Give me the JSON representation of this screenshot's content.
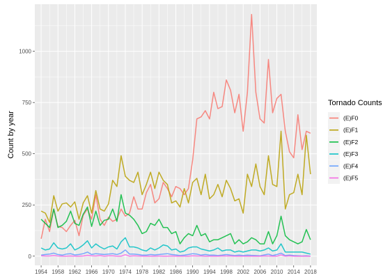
{
  "chart_data": {
    "type": "line",
    "title": "",
    "xlabel": "",
    "ylabel": "Count by year",
    "xlim": [
      1952.5,
      2019.5
    ],
    "ylim": [
      -45,
      1230
    ],
    "xticks": [
      1954,
      1958,
      1962,
      1966,
      1970,
      1974,
      1978,
      1982,
      1986,
      1990,
      1994,
      1998,
      2002,
      2006,
      2010,
      2014,
      2018
    ],
    "yticks": [
      0,
      250,
      500,
      750,
      1000
    ],
    "grid": true,
    "legend": {
      "title": "Tornado Counts",
      "position": "right"
    },
    "x": [
      1954,
      1955,
      1956,
      1957,
      1958,
      1959,
      1960,
      1961,
      1962,
      1963,
      1964,
      1965,
      1966,
      1967,
      1968,
      1969,
      1970,
      1971,
      1972,
      1973,
      1974,
      1975,
      1976,
      1977,
      1978,
      1979,
      1980,
      1981,
      1982,
      1983,
      1984,
      1985,
      1986,
      1987,
      1988,
      1989,
      1990,
      1991,
      1992,
      1993,
      1994,
      1995,
      1996,
      1997,
      1998,
      1999,
      2000,
      2001,
      2002,
      2003,
      2004,
      2005,
      2006,
      2007,
      2008,
      2009,
      2010,
      2011,
      2012,
      2013,
      2014,
      2015,
      2016,
      2017,
      2018
    ],
    "series": [
      {
        "name": "(E)F0",
        "color": "#F8766D",
        "values": [
          85,
          180,
          120,
          230,
          145,
          140,
          120,
          150,
          175,
          100,
          200,
          230,
          180,
          300,
          180,
          150,
          190,
          170,
          180,
          230,
          195,
          210,
          290,
          230,
          230,
          310,
          350,
          260,
          280,
          360,
          330,
          290,
          340,
          330,
          300,
          330,
          470,
          670,
          680,
          710,
          670,
          800,
          720,
          730,
          860,
          810,
          700,
          790,
          610,
          800,
          1180,
          800,
          670,
          650,
          960,
          700,
          770,
          790,
          610,
          510,
          480,
          690,
          520,
          610,
          600
        ]
      },
      {
        "name": "(E)F1",
        "color": "#B79F00",
        "values": [
          220,
          210,
          165,
          295,
          220,
          255,
          260,
          240,
          265,
          180,
          260,
          295,
          210,
          320,
          230,
          220,
          255,
          370,
          340,
          490,
          390,
          370,
          360,
          410,
          300,
          350,
          410,
          330,
          410,
          370,
          350,
          260,
          270,
          240,
          330,
          260,
          360,
          380,
          300,
          400,
          280,
          300,
          350,
          290,
          370,
          330,
          270,
          280,
          210,
          400,
          340,
          450,
          340,
          300,
          490,
          350,
          340,
          610,
          230,
          300,
          310,
          400,
          300,
          590,
          400
        ]
      },
      {
        "name": "(E)F2",
        "color": "#00BA38",
        "values": [
          180,
          160,
          140,
          230,
          140,
          150,
          170,
          220,
          160,
          150,
          205,
          240,
          145,
          220,
          150,
          175,
          180,
          230,
          170,
          300,
          210,
          200,
          180,
          150,
          110,
          120,
          160,
          150,
          180,
          140,
          140,
          110,
          120,
          60,
          90,
          110,
          100,
          150,
          100,
          110,
          70,
          80,
          80,
          90,
          100,
          110,
          60,
          80,
          60,
          70,
          90,
          80,
          60,
          60,
          120,
          60,
          100,
          195,
          100,
          80,
          70,
          60,
          70,
          130,
          80
        ]
      },
      {
        "name": "(E)F3",
        "color": "#00BFC4",
        "values": [
          40,
          30,
          35,
          65,
          40,
          35,
          40,
          60,
          30,
          40,
          55,
          75,
          40,
          60,
          45,
          35,
          45,
          50,
          35,
          70,
          90,
          45,
          45,
          40,
          30,
          25,
          40,
          30,
          40,
          55,
          50,
          30,
          35,
          20,
          25,
          40,
          45,
          45,
          35,
          30,
          25,
          30,
          40,
          25,
          30,
          30,
          20,
          25,
          20,
          25,
          30,
          30,
          25,
          30,
          40,
          25,
          30,
          60,
          20,
          20,
          20,
          20,
          20,
          15,
          10
        ]
      },
      {
        "name": "(E)F4",
        "color": "#619CFF",
        "values": [
          5,
          8,
          10,
          15,
          8,
          5,
          10,
          12,
          6,
          8,
          12,
          20,
          8,
          12,
          10,
          8,
          10,
          12,
          8,
          15,
          30,
          10,
          10,
          8,
          5,
          5,
          8,
          6,
          8,
          10,
          12,
          8,
          6,
          3,
          5,
          8,
          12,
          10,
          5,
          8,
          5,
          5,
          3,
          5,
          8,
          5,
          3,
          5,
          3,
          5,
          4,
          3,
          2,
          6,
          10,
          3,
          8,
          15,
          3,
          5,
          3,
          2,
          1,
          2,
          0
        ]
      },
      {
        "name": "(E)F5",
        "color": "#F564E3",
        "values": [
          2,
          1,
          1,
          3,
          1,
          0,
          0,
          1,
          0,
          0,
          1,
          4,
          2,
          1,
          3,
          0,
          2,
          2,
          0,
          0,
          7,
          0,
          2,
          1,
          0,
          0,
          0,
          0,
          1,
          0,
          0,
          1,
          0,
          0,
          0,
          0,
          2,
          1,
          1,
          0,
          0,
          0,
          0,
          1,
          1,
          1,
          0,
          0,
          0,
          0,
          0,
          0,
          0,
          1,
          1,
          0,
          0,
          6,
          0,
          2,
          0,
          0,
          0,
          0,
          0
        ]
      }
    ]
  }
}
